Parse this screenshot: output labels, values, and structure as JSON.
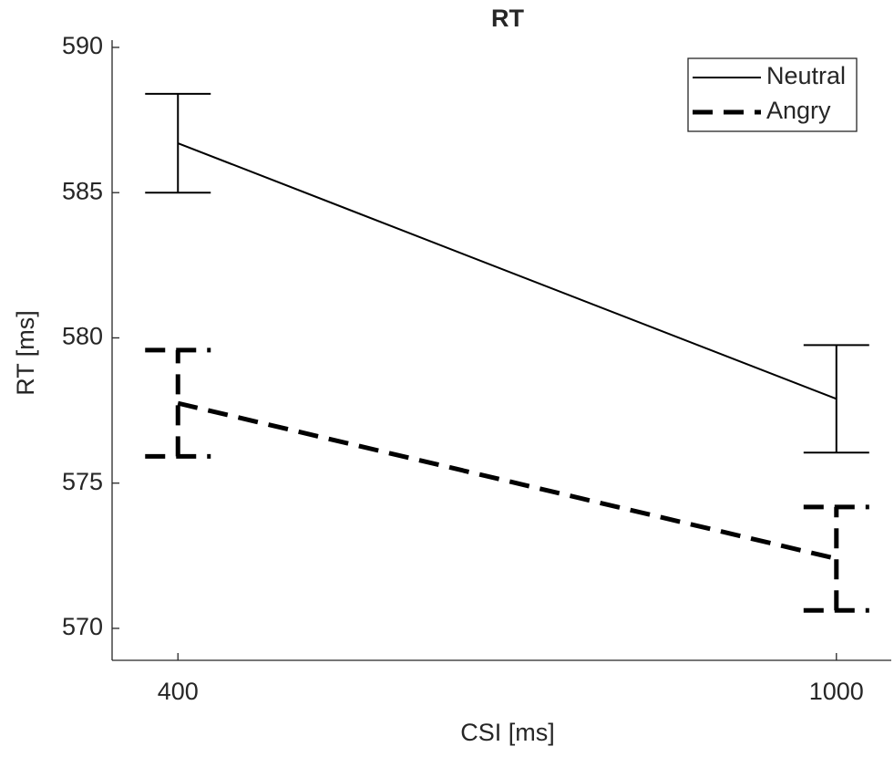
{
  "chart_data": {
    "type": "line",
    "title": "RT",
    "x_label": "CSI [ms]",
    "y_label": "RT [ms]",
    "x": [
      400,
      1000
    ],
    "series": [
      {
        "name": "Neutral",
        "color": "#000000",
        "linestyle": "solid",
        "values": [
          586.7,
          577.9
        ],
        "errors": [
          1.7,
          1.85
        ]
      },
      {
        "name": "Angry",
        "color": "#000000",
        "linestyle": "dashed",
        "values": [
          577.75,
          572.4
        ],
        "errors": [
          1.83,
          1.78
        ]
      }
    ],
    "xlim": [
      340,
      1050
    ],
    "ylim": [
      568.9,
      590.25
    ],
    "xticks": [
      400,
      1000
    ],
    "yticks": [
      570,
      575,
      580,
      585,
      590
    ],
    "legend": "upper right"
  }
}
